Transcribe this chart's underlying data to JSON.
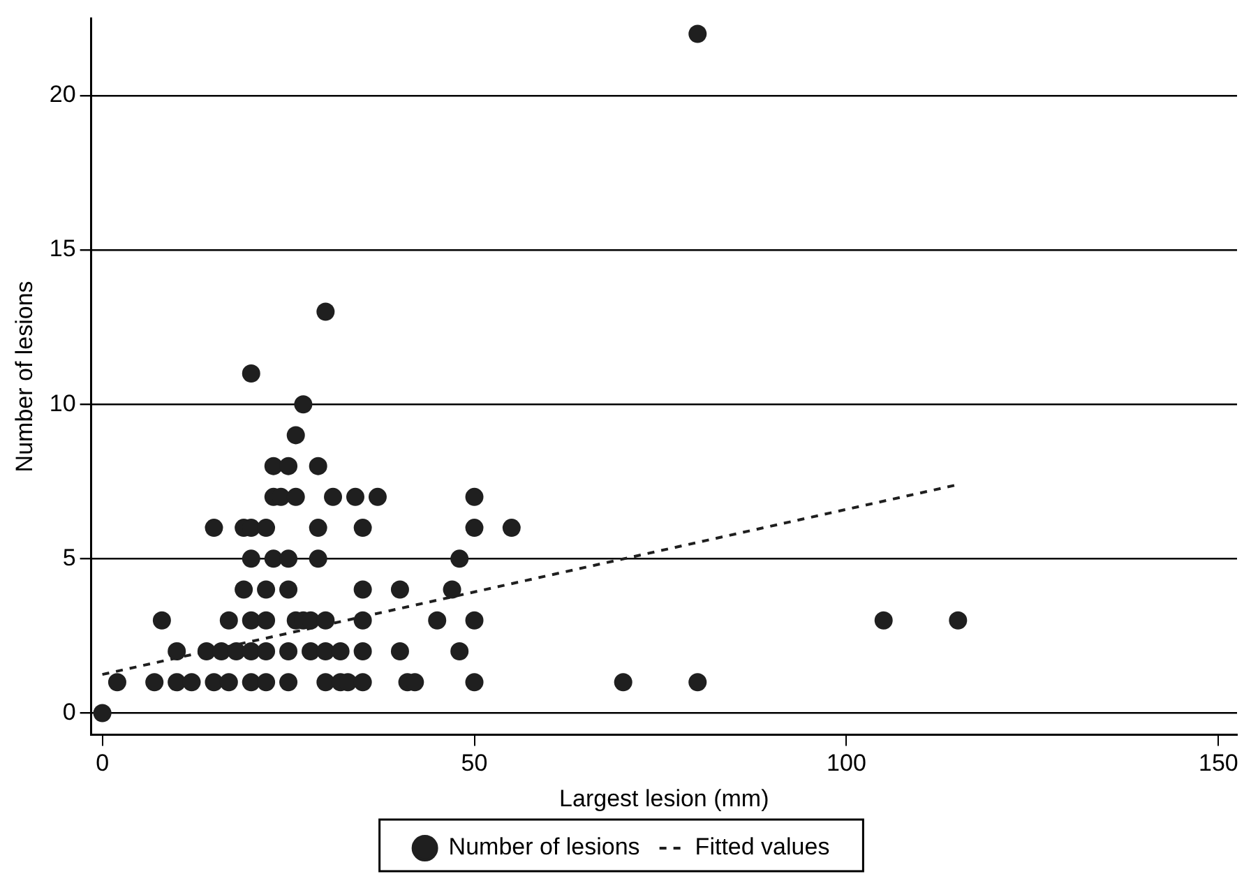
{
  "chart_data": {
    "type": "scatter",
    "xlabel": "Largest lesion (mm)",
    "ylabel": "Number of lesions",
    "xlim": [
      -1.5,
      152.5
    ],
    "xticks": [
      0,
      50,
      100,
      150
    ],
    "ylim": [
      -0.7,
      22.5
    ],
    "yticks": [
      0,
      5,
      10,
      15,
      20
    ],
    "grid": "y",
    "legend": "bottom",
    "marker": "circle",
    "series": [
      {
        "name": "Number of lesions",
        "color": "#1f1f1f",
        "x": [
          0,
          2,
          7,
          10,
          12,
          15,
          17,
          20,
          22,
          25,
          30,
          32,
          33,
          35,
          41,
          42,
          50,
          70,
          80,
          10,
          14,
          16,
          18,
          20,
          22,
          25,
          28,
          30,
          32,
          35,
          40,
          48,
          8,
          17,
          20,
          22,
          26,
          27,
          28,
          30,
          35,
          45,
          50,
          105,
          115,
          19,
          22,
          25,
          35,
          40,
          47,
          20,
          23,
          25,
          29,
          48,
          15,
          19,
          20,
          22,
          29,
          35,
          50,
          55,
          23,
          24,
          26,
          31,
          34,
          37,
          50,
          23,
          25,
          29,
          26,
          27,
          20,
          30,
          80
        ],
        "values": [
          0,
          1,
          1,
          1,
          1,
          1,
          1,
          1,
          1,
          1,
          1,
          1,
          1,
          1,
          1,
          1,
          1,
          1,
          1,
          2,
          2,
          2,
          2,
          2,
          2,
          2,
          2,
          2,
          2,
          2,
          2,
          2,
          3,
          3,
          3,
          3,
          3,
          3,
          3,
          3,
          3,
          3,
          3,
          3,
          3,
          4,
          4,
          4,
          4,
          4,
          4,
          5,
          5,
          5,
          5,
          5,
          6,
          6,
          6,
          6,
          6,
          6,
          6,
          6,
          7,
          7,
          7,
          7,
          7,
          7,
          7,
          8,
          8,
          8,
          9,
          10,
          11,
          13,
          22
        ]
      },
      {
        "name": "Fitted values",
        "type": "line",
        "color": "#1f1f1f",
        "line_style": "dashed",
        "marker": "none",
        "x": [
          0,
          115
        ],
        "values": [
          1.25,
          7.4
        ]
      }
    ]
  }
}
